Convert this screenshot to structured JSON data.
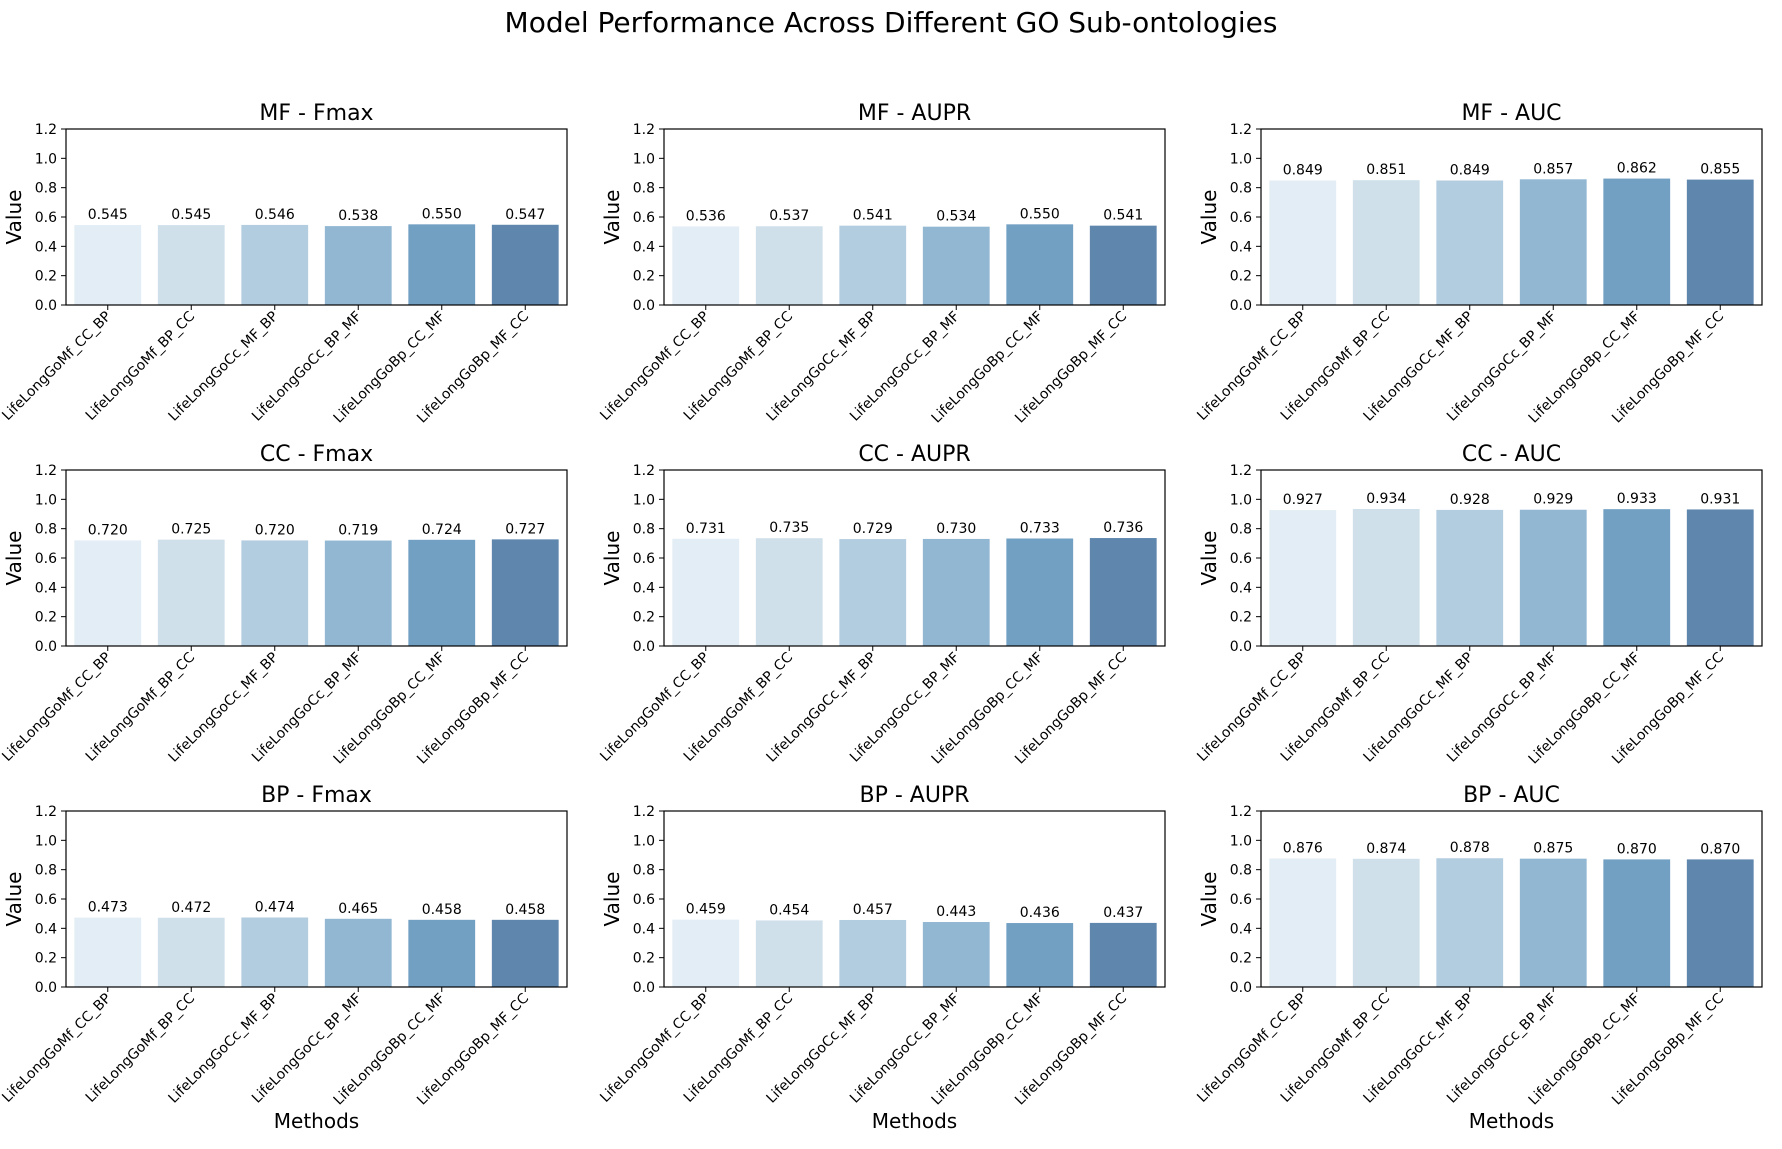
{
  "suptitle": "Model Performance Across Different GO Sub-ontologies",
  "methods": [
    "LifeLongGoMf_CC_BP",
    "LifeLongGoMf_BP_CC",
    "LifeLongGoCc_MF_BP",
    "LifeLongGoCc_BP_MF",
    "LifeLongGoBp_CC_MF",
    "LifeLongGoBp_MF_CC"
  ],
  "bar_colors": [
    "#e3edf5",
    "#d0e0eb",
    "#b3cde0",
    "#91b7d2",
    "#72a0c3",
    "#5f86ad"
  ],
  "ylabel": "Value",
  "xlabel": "Methods",
  "yticks": [
    "0.0",
    "0.2",
    "0.4",
    "0.6",
    "0.8",
    "1.0",
    "1.2"
  ],
  "chart_data": [
    {
      "type": "bar",
      "title": "MF - Fmax",
      "categories": [
        "LifeLongGoMf_CC_BP",
        "LifeLongGoMf_BP_CC",
        "LifeLongGoCc_MF_BP",
        "LifeLongGoCc_BP_MF",
        "LifeLongGoBp_CC_MF",
        "LifeLongGoBp_MF_CC"
      ],
      "values": [
        0.545,
        0.545,
        0.546,
        0.538,
        0.55,
        0.547
      ],
      "labels": [
        "0.545",
        "0.545",
        "0.546",
        "0.538",
        "0.550",
        "0.547"
      ],
      "ylabel": "Value",
      "xlabel": "",
      "ylim": [
        0,
        1.2
      ]
    },
    {
      "type": "bar",
      "title": "MF - AUPR",
      "categories": [
        "LifeLongGoMf_CC_BP",
        "LifeLongGoMf_BP_CC",
        "LifeLongGoCc_MF_BP",
        "LifeLongGoCc_BP_MF",
        "LifeLongGoBp_CC_MF",
        "LifeLongGoBp_MF_CC"
      ],
      "values": [
        0.536,
        0.537,
        0.541,
        0.534,
        0.55,
        0.541
      ],
      "labels": [
        "0.536",
        "0.537",
        "0.541",
        "0.534",
        "0.550",
        "0.541"
      ],
      "ylabel": "Value",
      "xlabel": "",
      "ylim": [
        0,
        1.2
      ]
    },
    {
      "type": "bar",
      "title": "MF - AUC",
      "categories": [
        "LifeLongGoMf_CC_BP",
        "LifeLongGoMf_BP_CC",
        "LifeLongGoCc_MF_BP",
        "LifeLongGoCc_BP_MF",
        "LifeLongGoBp_CC_MF",
        "LifeLongGoBp_MF_CC"
      ],
      "values": [
        0.849,
        0.851,
        0.849,
        0.857,
        0.862,
        0.855
      ],
      "labels": [
        "0.849",
        "0.851",
        "0.849",
        "0.857",
        "0.862",
        "0.855"
      ],
      "ylabel": "Value",
      "xlabel": "",
      "ylim": [
        0,
        1.2
      ]
    },
    {
      "type": "bar",
      "title": "CC - Fmax",
      "categories": [
        "LifeLongGoMf_CC_BP",
        "LifeLongGoMf_BP_CC",
        "LifeLongGoCc_MF_BP",
        "LifeLongGoCc_BP_MF",
        "LifeLongGoBp_CC_MF",
        "LifeLongGoBp_MF_CC"
      ],
      "values": [
        0.72,
        0.725,
        0.72,
        0.719,
        0.724,
        0.727
      ],
      "labels": [
        "0.720",
        "0.725",
        "0.720",
        "0.719",
        "0.724",
        "0.727"
      ],
      "ylabel": "Value",
      "xlabel": "",
      "ylim": [
        0,
        1.2
      ]
    },
    {
      "type": "bar",
      "title": "CC - AUPR",
      "categories": [
        "LifeLongGoMf_CC_BP",
        "LifeLongGoMf_BP_CC",
        "LifeLongGoCc_MF_BP",
        "LifeLongGoCc_BP_MF",
        "LifeLongGoBp_CC_MF",
        "LifeLongGoBp_MF_CC"
      ],
      "values": [
        0.731,
        0.735,
        0.729,
        0.73,
        0.733,
        0.736
      ],
      "labels": [
        "0.731",
        "0.735",
        "0.729",
        "0.730",
        "0.733",
        "0.736"
      ],
      "ylabel": "Value",
      "xlabel": "",
      "ylim": [
        0,
        1.2
      ]
    },
    {
      "type": "bar",
      "title": "CC - AUC",
      "categories": [
        "LifeLongGoMf_CC_BP",
        "LifeLongGoMf_BP_CC",
        "LifeLongGoCc_MF_BP",
        "LifeLongGoCc_BP_MF",
        "LifeLongGoBp_CC_MF",
        "LifeLongGoBp_MF_CC"
      ],
      "values": [
        0.927,
        0.934,
        0.928,
        0.929,
        0.933,
        0.931
      ],
      "labels": [
        "0.927",
        "0.934",
        "0.928",
        "0.929",
        "0.933",
        "0.931"
      ],
      "ylabel": "Value",
      "xlabel": "",
      "ylim": [
        0,
        1.2
      ]
    },
    {
      "type": "bar",
      "title": "BP - Fmax",
      "categories": [
        "LifeLongGoMf_CC_BP",
        "LifeLongGoMf_BP_CC",
        "LifeLongGoCc_MF_BP",
        "LifeLongGoCc_BP_MF",
        "LifeLongGoBp_CC_MF",
        "LifeLongGoBp_MF_CC"
      ],
      "values": [
        0.473,
        0.472,
        0.474,
        0.465,
        0.458,
        0.458
      ],
      "labels": [
        "0.473",
        "0.472",
        "0.474",
        "0.465",
        "0.458",
        "0.458"
      ],
      "ylabel": "Value",
      "xlabel": "Methods",
      "ylim": [
        0,
        1.2
      ]
    },
    {
      "type": "bar",
      "title": "BP - AUPR",
      "categories": [
        "LifeLongGoMf_CC_BP",
        "LifeLongGoMf_BP_CC",
        "LifeLongGoCc_MF_BP",
        "LifeLongGoCc_BP_MF",
        "LifeLongGoBp_CC_MF",
        "LifeLongGoBp_MF_CC"
      ],
      "values": [
        0.459,
        0.454,
        0.457,
        0.443,
        0.436,
        0.437
      ],
      "labels": [
        "0.459",
        "0.454",
        "0.457",
        "0.443",
        "0.436",
        "0.437"
      ],
      "ylabel": "Value",
      "xlabel": "Methods",
      "ylim": [
        0,
        1.2
      ]
    },
    {
      "type": "bar",
      "title": "BP - AUC",
      "categories": [
        "LifeLongGoMf_CC_BP",
        "LifeLongGoMf_BP_CC",
        "LifeLongGoCc_MF_BP",
        "LifeLongGoCc_BP_MF",
        "LifeLongGoBp_CC_MF",
        "LifeLongGoBp_MF_CC"
      ],
      "values": [
        0.876,
        0.874,
        0.878,
        0.875,
        0.87,
        0.87
      ],
      "labels": [
        "0.876",
        "0.874",
        "0.878",
        "0.875",
        "0.870",
        "0.870"
      ],
      "ylabel": "Value",
      "xlabel": "Methods",
      "ylim": [
        0,
        1.2
      ]
    }
  ]
}
